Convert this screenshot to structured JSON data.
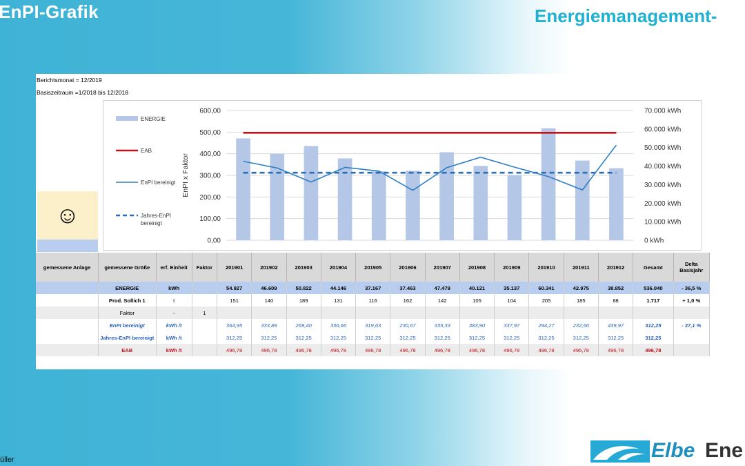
{
  "slide": {
    "title": "EnPI-Grafik",
    "right_title": "Energiemanagement-",
    "footer_left": "üller",
    "logo_word1": "Elbe",
    "logo_word2": "Ene"
  },
  "sheet": {
    "berichtsmonat": "Berichtsmonat = 12/2019",
    "basiszeitraum": "Basiszeitraum =1/2018 bis 12/2018",
    "smiley": "☺"
  },
  "chart_data": {
    "type": "bar",
    "categories": [
      "201901",
      "201902",
      "201903",
      "201904",
      "201905",
      "201906",
      "201907",
      "201908",
      "201909",
      "201910",
      "201911",
      "201912"
    ],
    "ylabel": "EnPI x Faktor",
    "y_left_ticks": [
      "600,00",
      "500,00",
      "400,00",
      "300,00",
      "200,00",
      "100,00",
      "0,00"
    ],
    "y_left_range": [
      0,
      600
    ],
    "y_right_ticks": [
      "70.000 kWh",
      "60.000 kWh",
      "50.000 kWh",
      "40.000 kWh",
      "30.000 kWh",
      "20.000 kWh",
      "10.000 kWh",
      "0 kWh"
    ],
    "y_right_range": [
      0,
      70000
    ],
    "grid": true,
    "legend_position": "left",
    "series": [
      {
        "name": "ENERGIE",
        "kind": "bar",
        "axis": "right",
        "color": "#b4c7e7",
        "values": [
          54927,
          46609,
          50822,
          44146,
          37167,
          37463,
          47479,
          40121,
          35137,
          60341,
          42975,
          38852
        ]
      },
      {
        "name": "EAB",
        "kind": "line",
        "axis": "left",
        "color": "#c0121a",
        "values": [
          496.78,
          496.78,
          496.78,
          496.78,
          496.78,
          496.78,
          496.78,
          496.78,
          496.78,
          496.78,
          496.78,
          496.78
        ]
      },
      {
        "name": "EnPI bereinigt",
        "kind": "line",
        "axis": "left",
        "color": "#2f7fc1",
        "values": [
          364.95,
          333.89,
          269.4,
          336.66,
          319.63,
          230.67,
          335.33,
          383.9,
          337.97,
          294.27,
          232.66,
          439.97
        ]
      },
      {
        "name": "Jahres-EnPI bereinigt",
        "kind": "dashed",
        "axis": "left",
        "color": "#2a6db5",
        "values": [
          312.25,
          312.25,
          312.25,
          312.25,
          312.25,
          312.25,
          312.25,
          312.25,
          312.25,
          312.25,
          312.25,
          312.25
        ]
      }
    ]
  },
  "legend": [
    {
      "label": "ENERGIE"
    },
    {
      "label": "EAB"
    },
    {
      "label": "EnPI bereinigt"
    },
    {
      "label": "Jahres-EnPI bereinigt"
    }
  ],
  "table": {
    "headers": [
      "gemessene Anlage",
      "gemessene Größe",
      "erf. Einheit",
      "Faktor",
      "201901",
      "201902",
      "201903",
      "201904",
      "201905",
      "201906",
      "201907",
      "201908",
      "201909",
      "201910",
      "201911",
      "201912",
      "Gesamt",
      "Delta Basisjahr"
    ],
    "rows": [
      {
        "cls": "row-energie",
        "cells": [
          "",
          "ENERGIE",
          "kWh",
          "",
          "54.927",
          "46.609",
          "50.822",
          "44.146",
          "37.167",
          "37.463",
          "47.479",
          "40.121",
          "35.137",
          "60.341",
          "42.975",
          "38.852",
          "536.040",
          "- 36,5 %"
        ]
      },
      {
        "cls": "row-prod",
        "cells": [
          "",
          "Prod. Sollich 1",
          "t",
          "",
          "151",
          "140",
          "189",
          "131",
          "116",
          "162",
          "142",
          "105",
          "104",
          "205",
          "185",
          "88",
          "1.717",
          "+ 1,0 %"
        ]
      },
      {
        "cls": "row-faktor",
        "cells": [
          "",
          "Faktor",
          "-",
          "1",
          "",
          "",
          "",
          "",
          "",
          "",
          "",
          "",
          "",
          "",
          "",
          "",
          "",
          ""
        ]
      },
      {
        "cls": "row-enpi",
        "cells": [
          "",
          "EnPI bereinigt",
          "kWh /t",
          "",
          "364,95",
          "333,89",
          "269,40",
          "336,66",
          "319,63",
          "230,67",
          "335,33",
          "383,90",
          "337,97",
          "294,27",
          "232,66",
          "439,97",
          "312,25",
          "- 37,1 %"
        ]
      },
      {
        "cls": "row-jahr",
        "cells": [
          "",
          "Jahres-EnPI bereinigt",
          "kWh /t",
          "",
          "312,25",
          "312,25",
          "312,25",
          "312,25",
          "312,25",
          "312,25",
          "312,25",
          "312,25",
          "312,25",
          "312,25",
          "312,25",
          "312,25",
          "312,25",
          ""
        ]
      },
      {
        "cls": "row-eab",
        "cells": [
          "",
          "EAB",
          "kWh /t",
          "",
          "496,78",
          "496,78",
          "496,78",
          "496,78",
          "496,78",
          "496,78",
          "496,78",
          "496,78",
          "496,78",
          "496,78",
          "496,78",
          "496,78",
          "496,78",
          ""
        ]
      }
    ]
  }
}
